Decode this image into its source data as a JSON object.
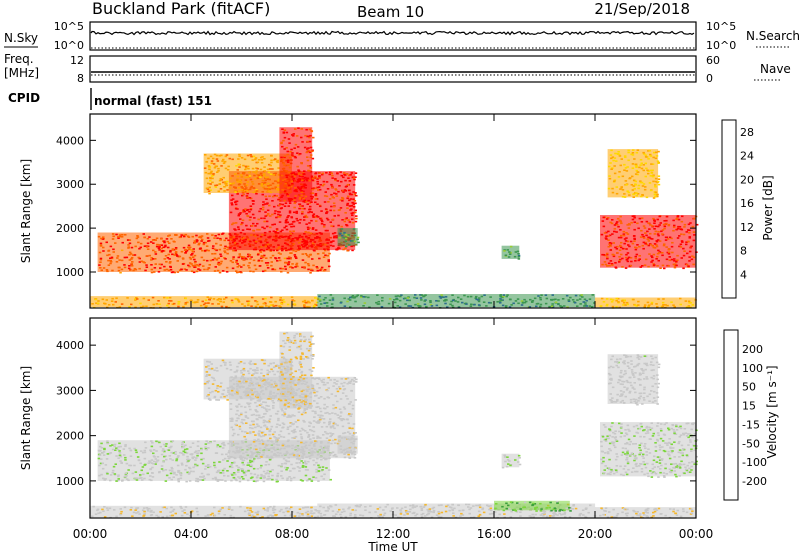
{
  "header": {
    "station": "Buckland Park (fitACF)",
    "beam": "Beam 10",
    "date": "21/Sep/2018"
  },
  "top_panels": {
    "nsky_label": "N.Sky",
    "nsky_ticks": [
      "10^5",
      "10^0"
    ],
    "nsearch_label": "N.Search",
    "nsearch_ticks": [
      "10^5",
      "10^0"
    ],
    "freq_label": "Freq.",
    "freq_unit": "[MHz]",
    "freq_ticks": [
      "12",
      "8"
    ],
    "nave_label": "Nave",
    "nave_ticks": [
      "60",
      "0"
    ],
    "cpid_label": "CPID",
    "cpid_value": "normal (fast) 151"
  },
  "colors": {
    "power": [
      "#0000ff",
      "#1e3c8c",
      "#2e6e8c",
      "#3c9650",
      "#9acd32",
      "#ffd700",
      "#ffa500",
      "#ff6400",
      "#ff0000"
    ],
    "velocity": [
      "#ff0000",
      "#ff5500",
      "#ff9900",
      "#f5b82e",
      "#c8c8c8",
      "#c8c8c8",
      "#7cd63c",
      "#3ca03c",
      "#2e6e8c",
      "#1e3c8c",
      "#0000ff"
    ]
  },
  "chart_data": [
    {
      "type": "heatmap",
      "panel": "power",
      "xlabel": "Time UT",
      "ylabel": "Slant Range [km]",
      "x_ticks": [
        "00:00",
        "04:00",
        "08:00",
        "12:00",
        "16:00",
        "20:00",
        "00:00"
      ],
      "xlim_hours": [
        0,
        24
      ],
      "y_ticks": [
        1000,
        2000,
        3000,
        4000
      ],
      "ylim_km": [
        180,
        4600
      ],
      "colorbar_label": "Power [dB]",
      "colorbar_ticks": [
        4,
        8,
        12,
        16,
        20,
        24,
        28
      ],
      "colorbar_range": [
        0,
        30
      ],
      "regions": [
        {
          "t0": 0.3,
          "t1": 9.5,
          "r0": 1000,
          "r1": 1900,
          "value": 26
        },
        {
          "t0": 5.5,
          "t1": 10.5,
          "r0": 1500,
          "r1": 3300,
          "value": 28
        },
        {
          "t0": 4.5,
          "t1": 8.0,
          "r0": 2800,
          "r1": 3700,
          "value": 22
        },
        {
          "t0": 7.5,
          "t1": 8.8,
          "r0": 2600,
          "r1": 4300,
          "value": 27
        },
        {
          "t0": 9.8,
          "t1": 10.6,
          "r0": 1600,
          "r1": 2000,
          "value": 12
        },
        {
          "t0": 16.3,
          "t1": 17.0,
          "r0": 1300,
          "r1": 1600,
          "value": 12
        },
        {
          "t0": 20.2,
          "t1": 24.0,
          "r0": 1100,
          "r1": 2300,
          "value": 27
        },
        {
          "t0": 20.5,
          "t1": 22.5,
          "r0": 2700,
          "r1": 3800,
          "value": 20
        },
        {
          "t0": 0.0,
          "t1": 9.0,
          "r0": 200,
          "r1": 450,
          "value": 22
        },
        {
          "t0": 9.0,
          "t1": 20.0,
          "r0": 200,
          "r1": 500,
          "value": 11
        },
        {
          "t0": 20.0,
          "t1": 24.0,
          "r0": 200,
          "r1": 420,
          "value": 20
        }
      ]
    },
    {
      "type": "heatmap",
      "panel": "velocity",
      "xlabel": "Time UT",
      "ylabel": "Slant Range [km]",
      "x_ticks": [
        "00:00",
        "04:00",
        "08:00",
        "12:00",
        "16:00",
        "20:00",
        "00:00"
      ],
      "xlim_hours": [
        0,
        24
      ],
      "y_ticks": [
        1000,
        2000,
        3000,
        4000
      ],
      "ylim_km": [
        180,
        4600
      ],
      "colorbar_label": "Velocity [m s⁻¹]",
      "colorbar_ticks": [
        "200",
        "100",
        "50",
        "15",
        "-15",
        "-50",
        "-100",
        "-200"
      ],
      "colorbar_range": [
        -250,
        250
      ],
      "regions": [
        {
          "t0": 0.3,
          "t1": 9.5,
          "r0": 1000,
          "r1": 1900,
          "value": 0
        },
        {
          "t0": 5.5,
          "t1": 10.5,
          "r0": 1500,
          "r1": 3300,
          "value": -30
        },
        {
          "t0": 4.5,
          "t1": 8.0,
          "r0": 2800,
          "r1": 3700,
          "value": -40
        },
        {
          "t0": 7.5,
          "t1": 8.8,
          "r0": 2600,
          "r1": 4300,
          "value": -60
        },
        {
          "t0": 9.8,
          "t1": 10.6,
          "r0": 1600,
          "r1": 2000,
          "value": -30
        },
        {
          "t0": 16.3,
          "t1": 17.0,
          "r0": 1300,
          "r1": 1600,
          "value": 0
        },
        {
          "t0": 20.2,
          "t1": 24.0,
          "r0": 1100,
          "r1": 2300,
          "value": 0
        },
        {
          "t0": 20.5,
          "t1": 22.5,
          "r0": 2700,
          "r1": 3800,
          "value": -20
        },
        {
          "t0": 0.0,
          "t1": 9.0,
          "r0": 200,
          "r1": 450,
          "value": -45
        },
        {
          "t0": 9.0,
          "t1": 20.0,
          "r0": 200,
          "r1": 500,
          "value": -30
        },
        {
          "t0": 16.0,
          "t1": 19.0,
          "r0": 350,
          "r1": 560,
          "value": 60
        },
        {
          "t0": 20.0,
          "t1": 24.0,
          "r0": 200,
          "r1": 420,
          "value": -45
        }
      ]
    }
  ]
}
